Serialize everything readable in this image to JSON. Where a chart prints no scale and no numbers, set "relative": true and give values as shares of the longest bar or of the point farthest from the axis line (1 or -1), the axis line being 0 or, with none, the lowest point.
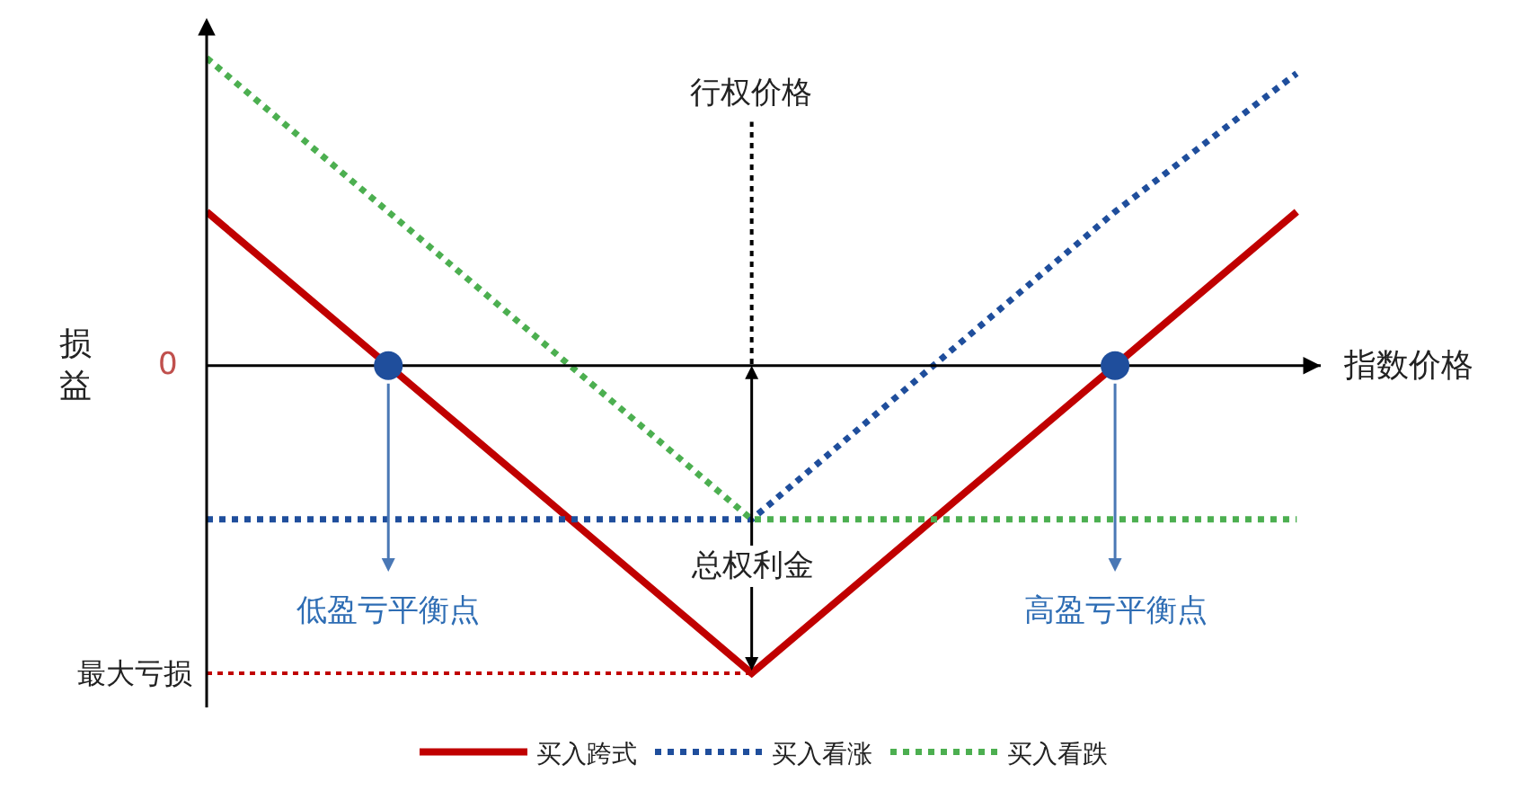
{
  "chart_data": {
    "type": "line",
    "relative": true,
    "xlabel": "指数价格",
    "ylabel": "损益",
    "categories": [
      null,
      null,
      null,
      null,
      null,
      null,
      null
    ],
    "series": [
      {
        "name": "买入跨式",
        "color": "#c00000",
        "line_style": "solid",
        "values": [
          0.5,
          0,
          -0.5,
          -1,
          -0.5,
          0,
          0.5
        ]
      },
      {
        "name": "买入看涨",
        "color": "#1f4e9c",
        "line_style": "dotted",
        "values": [
          -0.5,
          -0.5,
          -0.5,
          -0.5,
          0,
          0.5,
          0.95
        ]
      },
      {
        "name": "买入看跌",
        "color": "#4caf50",
        "line_style": "dotted",
        "values": [
          1,
          0.5,
          0,
          -0.5,
          -0.5,
          -0.5,
          -0.5
        ]
      }
    ],
    "ref_lines": [
      {
        "axis": "x",
        "label": "行权价格",
        "color": "#000000",
        "line_style": "dotted"
      },
      {
        "axis": "y",
        "label": "最大亏损",
        "color": "#c00000",
        "line_style": "dotted"
      },
      {
        "axis": "y",
        "value": 0,
        "color": "#000000",
        "line_style": "solid"
      }
    ],
    "annotations": [
      "0",
      "总权利金",
      "低盈亏平衡点",
      "高盈亏平衡点"
    ],
    "legend": "bottom"
  }
}
